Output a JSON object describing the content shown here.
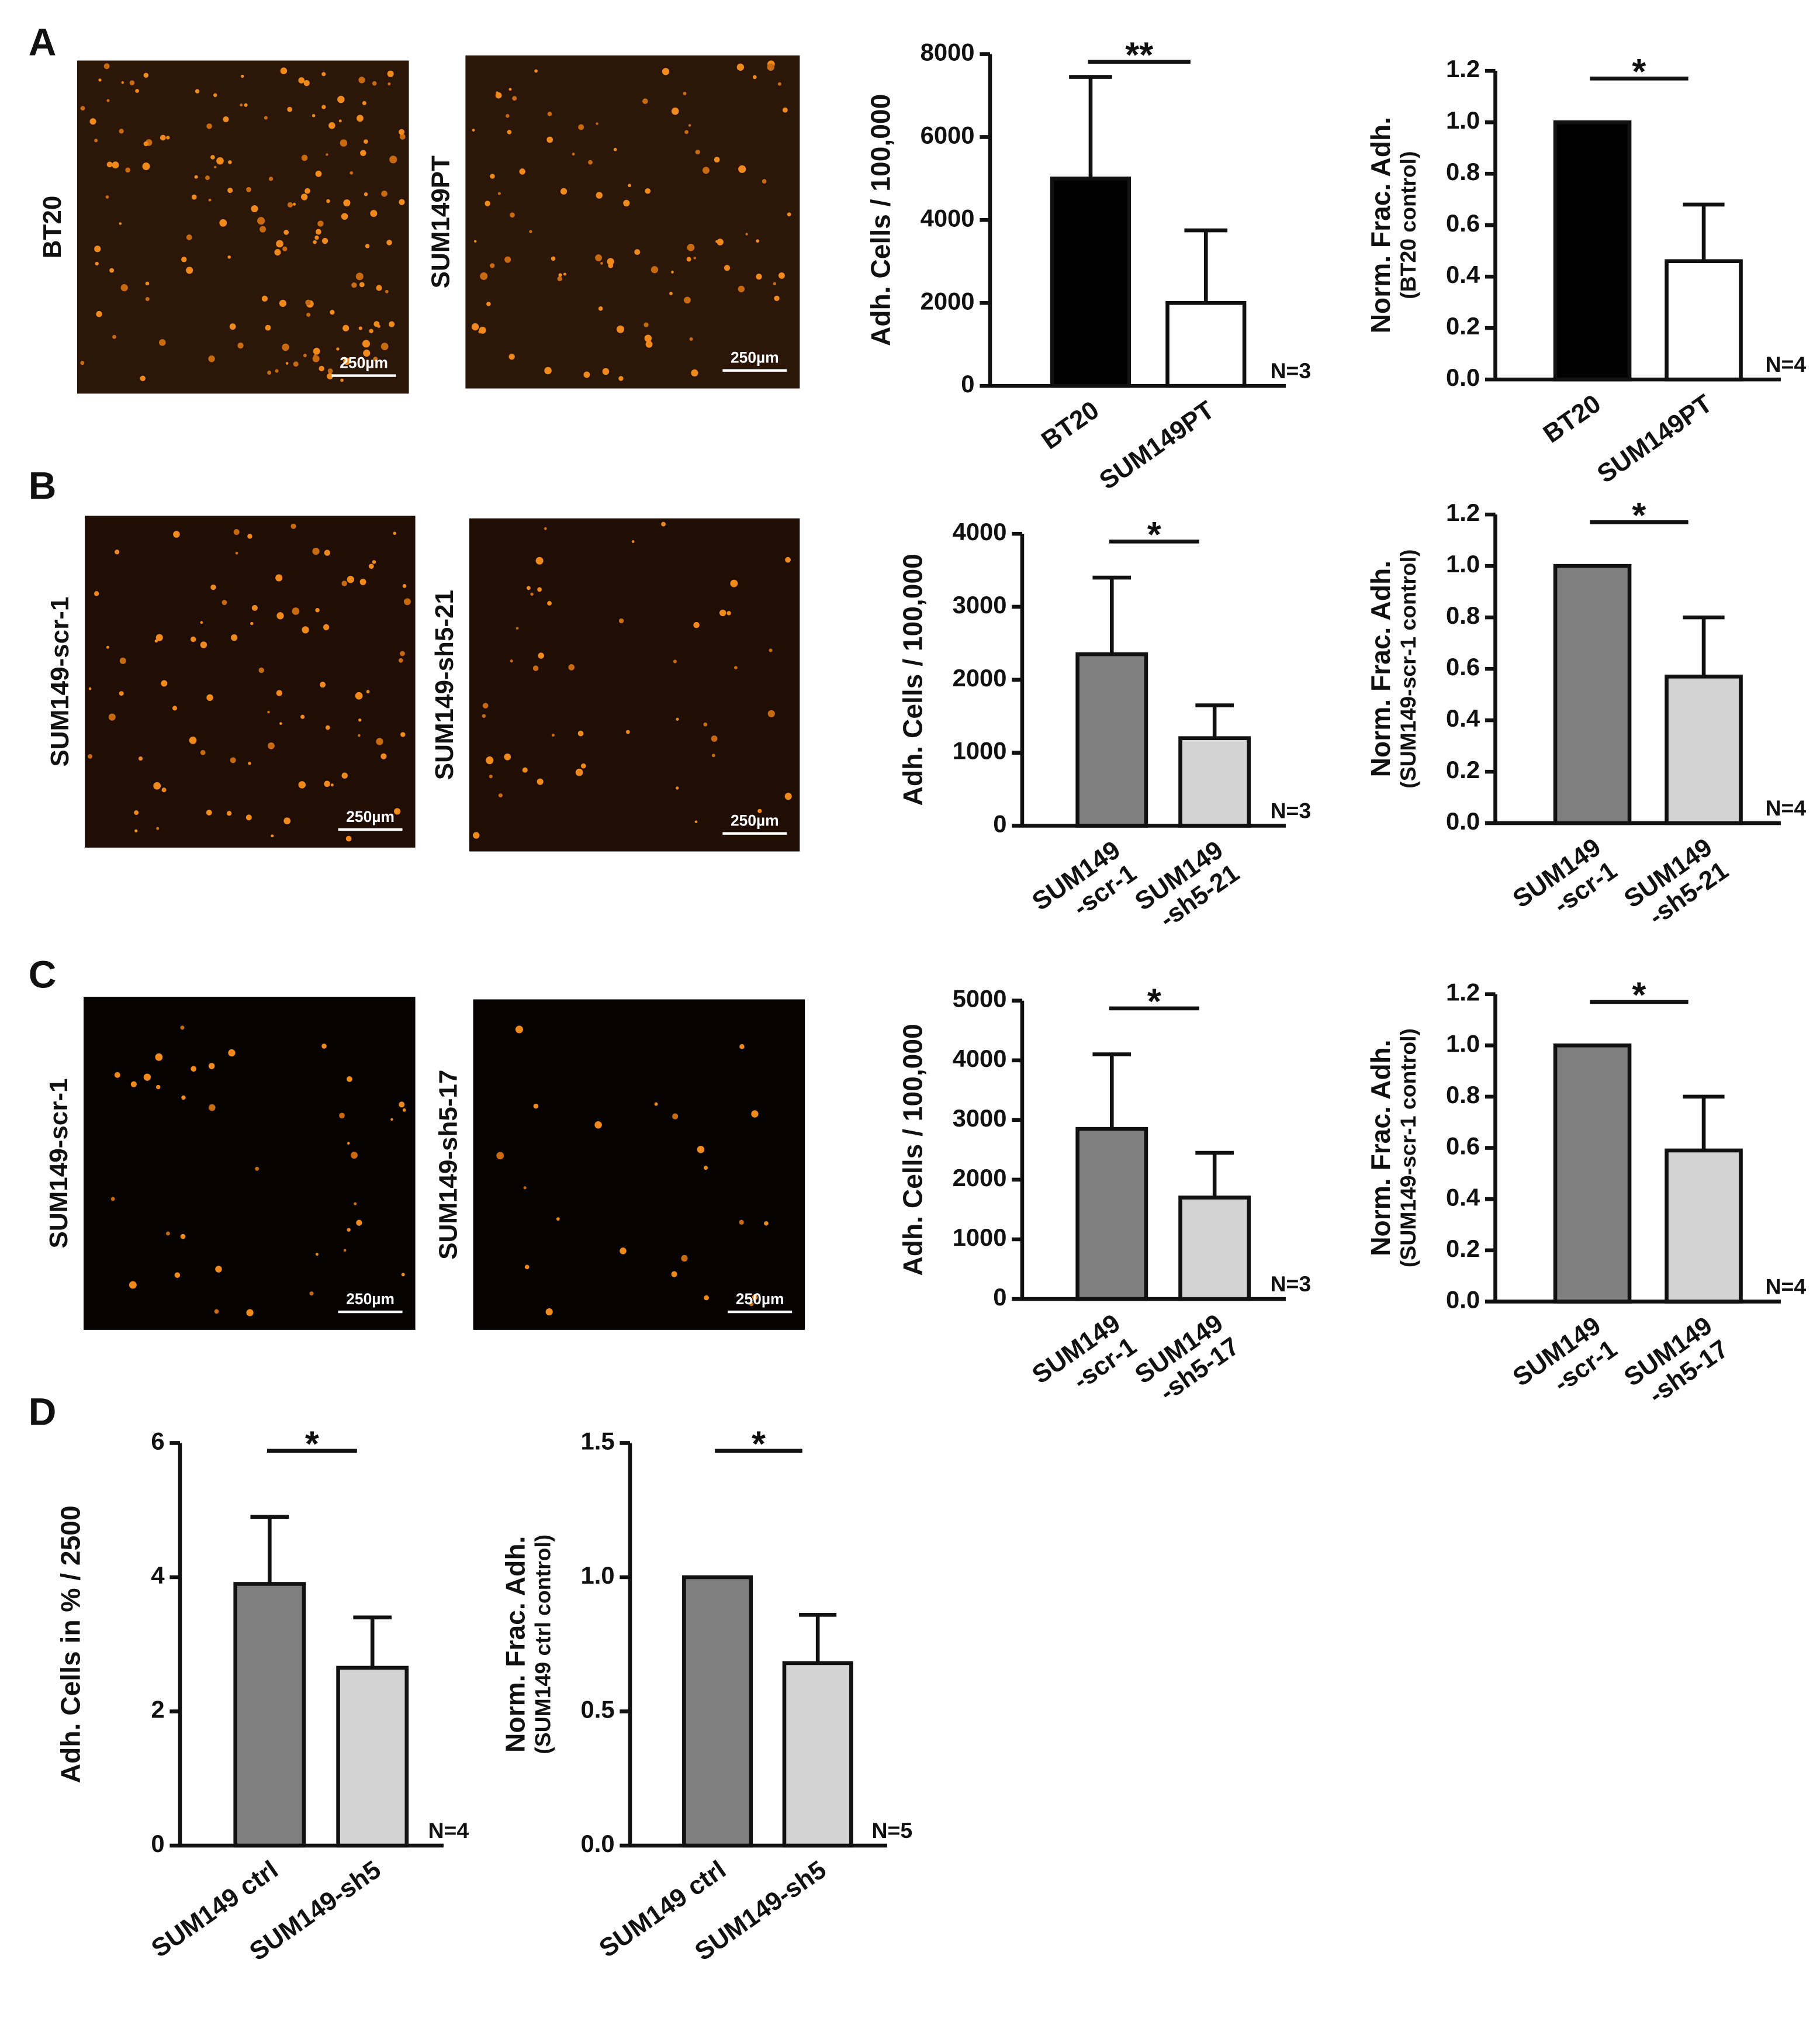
{
  "panels": [
    {
      "label": "A",
      "images": [
        {
          "label": "BT20",
          "scale_bar": "250µm"
        },
        {
          "label": "SUM149PT",
          "scale_bar": "250µm"
        }
      ]
    },
    {
      "label": "B",
      "images": [
        {
          "label": "SUM149-scr-1",
          "scale_bar": "250µm"
        },
        {
          "label": "SUM149-sh5-21",
          "scale_bar": "250µm"
        }
      ]
    },
    {
      "label": "C",
      "images": [
        {
          "label": "SUM149-scr-1",
          "scale_bar": "250µm"
        },
        {
          "label": "SUM149-sh5-17",
          "scale_bar": "250µm"
        }
      ]
    },
    {
      "label": "D",
      "images": []
    }
  ],
  "chart_data": [
    {
      "type": "bar",
      "ylabel": "Adh. Cells / 100,000",
      "categories": [
        "BT20",
        "SUM149PT"
      ],
      "values": [
        5000,
        2000
      ],
      "errors": [
        2450,
        1750
      ],
      "colors": [
        "#000000",
        "#ffffff"
      ],
      "ylim": [
        0,
        8000
      ],
      "yticks": [
        0,
        2000,
        4000,
        6000,
        8000
      ],
      "significance": "**",
      "annotation": "N=3"
    },
    {
      "type": "bar",
      "ylabel": "Norm. Frac. Adh.",
      "ylabel_note": "(BT20 control)",
      "categories": [
        "BT20",
        "SUM149PT"
      ],
      "values": [
        1.0,
        0.46
      ],
      "errors": [
        0,
        0.22
      ],
      "colors": [
        "#000000",
        "#ffffff"
      ],
      "ylim": [
        0,
        1.2
      ],
      "yticks": [
        {
          "value": 0,
          "label": "0.0"
        },
        0.2,
        0.4,
        0.6,
        0.8,
        {
          "value": 1,
          "label": "1.0"
        },
        1.2
      ],
      "significance": "*",
      "annotation": "N=4"
    },
    {
      "type": "bar",
      "ylabel": "Adh. Cells / 100,000",
      "categories": [
        "SUM149\n-scr-1",
        "SUM149\n-sh5-21"
      ],
      "values": [
        2350,
        1200
      ],
      "errors": [
        1050,
        450
      ],
      "colors": [
        "#808080",
        "#d3d3d3"
      ],
      "ylim": [
        0,
        4000
      ],
      "yticks": [
        0,
        1000,
        2000,
        3000,
        4000
      ],
      "significance": "*",
      "annotation": "N=3"
    },
    {
      "type": "bar",
      "ylabel": "Norm. Frac. Adh.",
      "ylabel_note": "(SUM149-scr-1 control)",
      "categories": [
        "SUM149\n-scr-1",
        "SUM149\n-sh5-21"
      ],
      "values": [
        1.0,
        0.57
      ],
      "errors": [
        0,
        0.23
      ],
      "colors": [
        "#808080",
        "#d3d3d3"
      ],
      "ylim": [
        0,
        1.2
      ],
      "yticks": [
        {
          "value": 0,
          "label": "0.0"
        },
        0.2,
        0.4,
        0.6,
        0.8,
        {
          "value": 1,
          "label": "1.0"
        },
        1.2
      ],
      "significance": "*",
      "annotation": "N=4"
    },
    {
      "type": "bar",
      "ylabel": "Adh. Cells / 100,000",
      "categories": [
        "SUM149\n-scr-1",
        "SUM149\n-sh5-17"
      ],
      "values": [
        2850,
        1700
      ],
      "errors": [
        1250,
        750
      ],
      "colors": [
        "#808080",
        "#d3d3d3"
      ],
      "ylim": [
        0,
        5000
      ],
      "yticks": [
        0,
        1000,
        2000,
        3000,
        4000,
        5000
      ],
      "significance": "*",
      "annotation": "N=3"
    },
    {
      "type": "bar",
      "ylabel": "Norm. Frac. Adh.",
      "ylabel_note": "(SUM149-scr-1 control)",
      "categories": [
        "SUM149\n-scr-1",
        "SUM149\n-sh5-17"
      ],
      "values": [
        1.0,
        0.59
      ],
      "errors": [
        0,
        0.21
      ],
      "colors": [
        "#808080",
        "#d3d3d3"
      ],
      "ylim": [
        0,
        1.2
      ],
      "yticks": [
        {
          "value": 0,
          "label": "0.0"
        },
        0.2,
        0.4,
        0.6,
        0.8,
        {
          "value": 1,
          "label": "1.0"
        },
        1.2
      ],
      "significance": "*",
      "annotation": "N=4"
    },
    {
      "type": "bar",
      "ylabel": "Adh. Cells in % / 2500",
      "categories": [
        "SUM149 ctrl",
        "SUM149-sh5"
      ],
      "values": [
        3.9,
        2.65
      ],
      "errors": [
        1.0,
        0.75
      ],
      "colors": [
        "#808080",
        "#d3d3d3"
      ],
      "ylim": [
        0,
        6
      ],
      "yticks": [
        0,
        2,
        4,
        6
      ],
      "significance": "*",
      "annotation": "N=4"
    },
    {
      "type": "bar",
      "ylabel": "Norm. Frac. Adh.",
      "ylabel_note": "(SUM149 ctrl control)",
      "categories": [
        "SUM149 ctrl",
        "SUM149-sh5"
      ],
      "values": [
        1.0,
        0.68
      ],
      "errors": [
        0,
        0.18
      ],
      "colors": [
        "#808080",
        "#d3d3d3"
      ],
      "ylim": [
        0,
        1.5
      ],
      "yticks": [
        {
          "value": 0,
          "label": "0.0"
        },
        0.5,
        {
          "value": 1,
          "label": "1.0"
        },
        1.5
      ],
      "significance": "*",
      "annotation": "N=5"
    }
  ]
}
